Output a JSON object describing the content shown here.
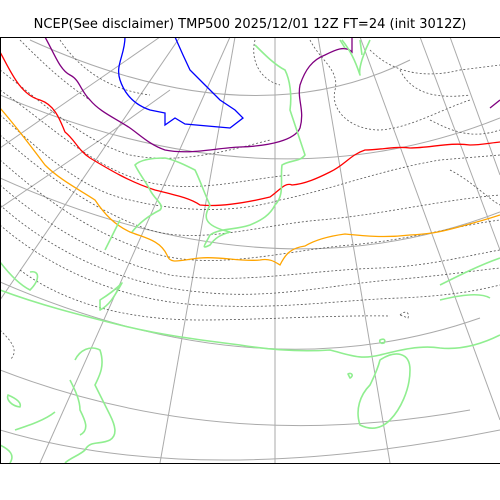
{
  "title": "NCEP(See disclaimer) TMP500 2025/12/01 12Z FT=24 (init 3012Z)",
  "map": {
    "field": "TMP500",
    "colors": {
      "coastline": "#90ee90",
      "graticule": "#aaaaaa",
      "isotherm_minor": "#555555",
      "isotherm_blue": "#0000ff",
      "isotherm_purple": "#800080",
      "isotherm_red": "#ff0000",
      "isotherm_orange": "#ffa500"
    }
  }
}
